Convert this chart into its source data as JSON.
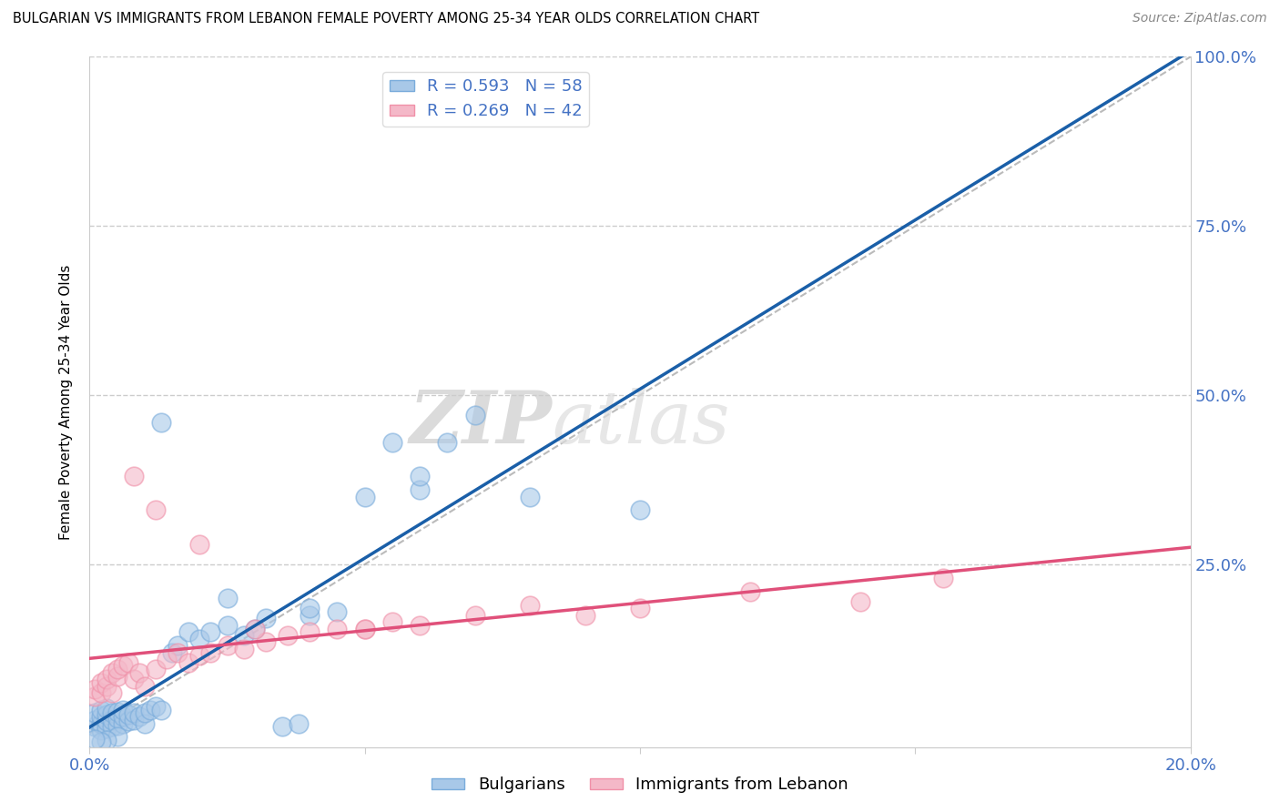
{
  "title": "BULGARIAN VS IMMIGRANTS FROM LEBANON FEMALE POVERTY AMONG 25-34 YEAR OLDS CORRELATION CHART",
  "source": "Source: ZipAtlas.com",
  "ylabel": "Female Poverty Among 25-34 Year Olds",
  "xlim": [
    0.0,
    0.2
  ],
  "ylim": [
    -0.02,
    1.0
  ],
  "xticks": [
    0.0,
    0.05,
    0.1,
    0.15,
    0.2
  ],
  "xticklabels": [
    "0.0%",
    "",
    "",
    "",
    "20.0%"
  ],
  "yticks_right": [
    0.0,
    0.25,
    0.5,
    0.75,
    1.0
  ],
  "ytick_labels_right": [
    "",
    "25.0%",
    "50.0%",
    "75.0%",
    "100.0%"
  ],
  "blue_color": "#a8c8e8",
  "pink_color": "#f4b8c8",
  "blue_edge_color": "#7aacdb",
  "pink_edge_color": "#f090a8",
  "blue_line_color": "#1a5fa8",
  "pink_line_color": "#e0507a",
  "blue_R": 0.593,
  "blue_N": 58,
  "pink_R": 0.269,
  "pink_N": 42,
  "legend_label_blue": "Bulgarians",
  "legend_label_pink": "Immigrants from Lebanon",
  "watermark": "ZIPatlas",
  "legend_text_color": "#4472c4",
  "axis_label_color": "#4472c4",
  "blue_scatter_x": [
    0.001,
    0.001,
    0.001,
    0.002,
    0.002,
    0.002,
    0.002,
    0.003,
    0.003,
    0.003,
    0.003,
    0.004,
    0.004,
    0.004,
    0.005,
    0.005,
    0.005,
    0.006,
    0.006,
    0.006,
    0.007,
    0.007,
    0.008,
    0.008,
    0.009,
    0.01,
    0.01,
    0.011,
    0.012,
    0.013,
    0.015,
    0.016,
    0.018,
    0.02,
    0.022,
    0.025,
    0.028,
    0.03,
    0.032,
    0.035,
    0.038,
    0.04,
    0.045,
    0.05,
    0.055,
    0.06,
    0.065,
    0.07,
    0.08,
    0.1,
    0.013,
    0.025,
    0.04,
    0.06,
    0.005,
    0.003,
    0.002,
    0.001
  ],
  "blue_scatter_y": [
    0.01,
    0.02,
    0.03,
    0.005,
    0.015,
    0.025,
    0.035,
    0.008,
    0.018,
    0.028,
    0.038,
    0.01,
    0.02,
    0.03,
    0.012,
    0.022,
    0.032,
    0.015,
    0.025,
    0.035,
    0.018,
    0.028,
    0.02,
    0.03,
    0.025,
    0.015,
    0.03,
    0.035,
    0.04,
    0.035,
    0.12,
    0.13,
    0.15,
    0.14,
    0.15,
    0.16,
    0.145,
    0.155,
    0.17,
    0.01,
    0.015,
    0.175,
    0.18,
    0.35,
    0.43,
    0.36,
    0.43,
    0.47,
    0.35,
    0.33,
    0.46,
    0.2,
    0.185,
    0.38,
    -0.005,
    -0.01,
    -0.012,
    -0.008
  ],
  "pink_scatter_x": [
    0.001,
    0.001,
    0.002,
    0.002,
    0.003,
    0.003,
    0.004,
    0.004,
    0.005,
    0.005,
    0.006,
    0.007,
    0.008,
    0.009,
    0.01,
    0.012,
    0.014,
    0.016,
    0.018,
    0.02,
    0.022,
    0.025,
    0.028,
    0.032,
    0.036,
    0.04,
    0.045,
    0.05,
    0.055,
    0.06,
    0.07,
    0.08,
    0.09,
    0.1,
    0.12,
    0.14,
    0.155,
    0.008,
    0.012,
    0.02,
    0.03,
    0.05
  ],
  "pink_scatter_y": [
    0.055,
    0.065,
    0.06,
    0.075,
    0.07,
    0.08,
    0.06,
    0.09,
    0.085,
    0.095,
    0.1,
    0.105,
    0.08,
    0.09,
    0.07,
    0.095,
    0.11,
    0.12,
    0.105,
    0.115,
    0.12,
    0.13,
    0.125,
    0.135,
    0.145,
    0.15,
    0.155,
    0.155,
    0.165,
    0.16,
    0.175,
    0.19,
    0.175,
    0.185,
    0.21,
    0.195,
    0.23,
    0.38,
    0.33,
    0.28,
    0.155,
    0.155
  ]
}
